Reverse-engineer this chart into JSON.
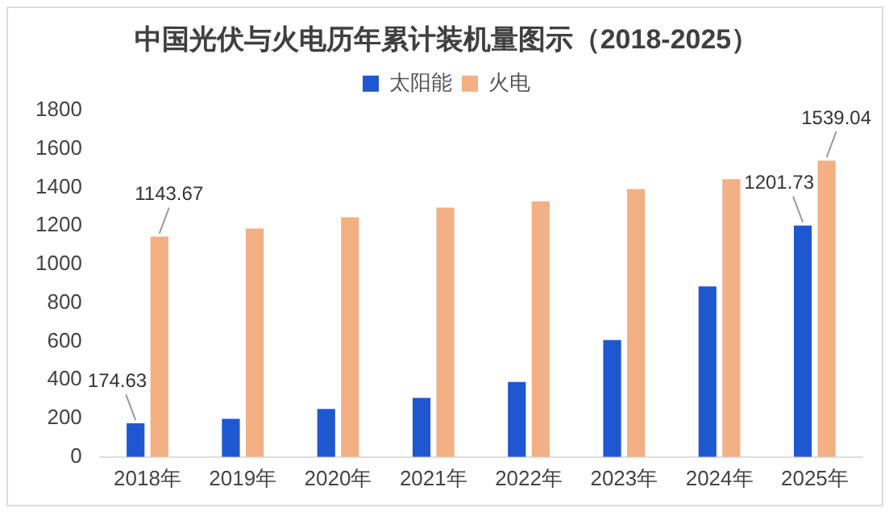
{
  "chart_data": {
    "type": "bar",
    "title": "中国光伏与火电历年累计装机量图示（2018-2025）",
    "categories": [
      "2018年",
      "2019年",
      "2020年",
      "2021年",
      "2022年",
      "2023年",
      "2024年",
      "2025年"
    ],
    "series": [
      {
        "name": "太阳能",
        "color": "#1f57d1",
        "values": [
          174.63,
          198,
          249,
          307,
          390,
          607,
          886,
          1201.73
        ],
        "value_labels": [
          "174.63",
          null,
          null,
          null,
          null,
          null,
          null,
          "1201.73"
        ]
      },
      {
        "name": "火电",
        "color": "#f2b084",
        "values": [
          1143.67,
          1186,
          1244,
          1295,
          1327,
          1391,
          1442,
          1539.04
        ],
        "value_labels": [
          "1143.67",
          null,
          null,
          null,
          null,
          null,
          null,
          "1539.04"
        ]
      }
    ],
    "ylim": [
      0,
      1800
    ],
    "yticks": [
      0,
      200,
      400,
      600,
      800,
      1000,
      1200,
      1400,
      1600,
      1800
    ],
    "grid": false,
    "legend": "top"
  }
}
